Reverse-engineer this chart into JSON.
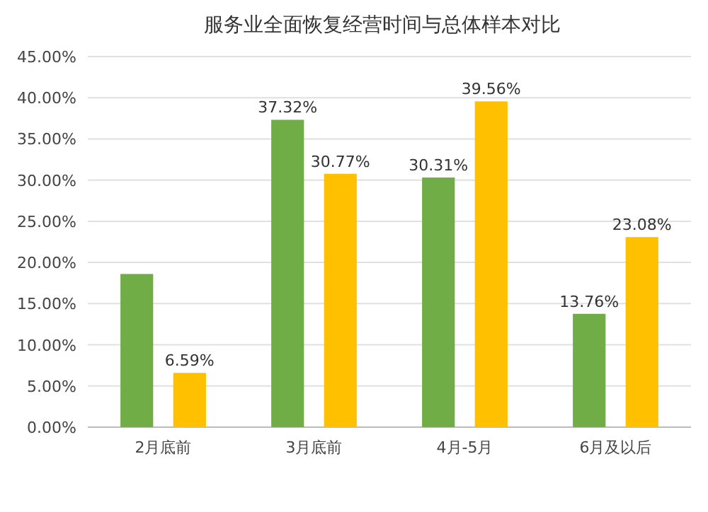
{
  "chart_data": {
    "type": "bar",
    "title": "服务业全面恢复经营时间与总体样本对比",
    "categories": [
      "2月底前",
      "3月底前",
      "4月-5月",
      "6月及以后"
    ],
    "series": [
      {
        "color": "#70ad47",
        "values": [
          18.6,
          37.32,
          30.31,
          13.76
        ],
        "value_labels": [
          null,
          "37.32%",
          "30.31%",
          "13.76%"
        ]
      },
      {
        "color": "#ffc000",
        "values": [
          6.59,
          30.77,
          39.56,
          23.08
        ],
        "value_labels": [
          "6.59%",
          "30.77%",
          "39.56%",
          "23.08%"
        ]
      }
    ],
    "ylim": [
      0,
      45
    ],
    "yticks": [
      {
        "value": 0,
        "label": "0.00%"
      },
      {
        "value": 5,
        "label": "5.00%"
      },
      {
        "value": 10,
        "label": "10.00%"
      },
      {
        "value": 15,
        "label": "15.00%"
      },
      {
        "value": 20,
        "label": "20.00%"
      },
      {
        "value": 25,
        "label": "25.00%"
      },
      {
        "value": 30,
        "label": "30.00%"
      },
      {
        "value": 35,
        "label": "35.00%"
      },
      {
        "value": 40,
        "label": "40.00%"
      },
      {
        "value": 45,
        "label": "45.00%"
      }
    ],
    "grid": "y"
  }
}
